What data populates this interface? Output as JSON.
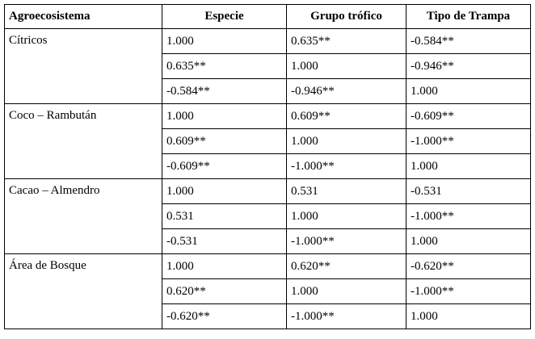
{
  "table": {
    "headers": [
      "Agroecosistema",
      "Especie",
      "Grupo trófico",
      "Tipo de Trampa"
    ],
    "groups": [
      {
        "name": "Cítricos",
        "rows": [
          [
            "1.000",
            "0.635**",
            "-0.584**"
          ],
          [
            "0.635**",
            "1.000",
            "-0.946**"
          ],
          [
            "-0.584**",
            "-0.946**",
            "1.000"
          ]
        ]
      },
      {
        "name": "Coco – Rambután",
        "rows": [
          [
            "1.000",
            "0.609**",
            "-0.609**"
          ],
          [
            "0.609**",
            "1.000",
            "-1.000**"
          ],
          [
            "-0.609**",
            "-1.000**",
            "1.000"
          ]
        ]
      },
      {
        "name": "Cacao – Almendro",
        "rows": [
          [
            "1.000",
            "0.531",
            "-0.531"
          ],
          [
            "0.531",
            "1.000",
            "-1.000**"
          ],
          [
            "-0.531",
            "-1.000**",
            "1.000"
          ]
        ]
      },
      {
        "name": "Área de Bosque",
        "rows": [
          [
            "1.000",
            "0.620**",
            "-0.620**"
          ],
          [
            "0.620**",
            "1.000",
            "-1.000**"
          ],
          [
            "-0.620**",
            "-1.000**",
            "1.000"
          ]
        ]
      }
    ]
  }
}
